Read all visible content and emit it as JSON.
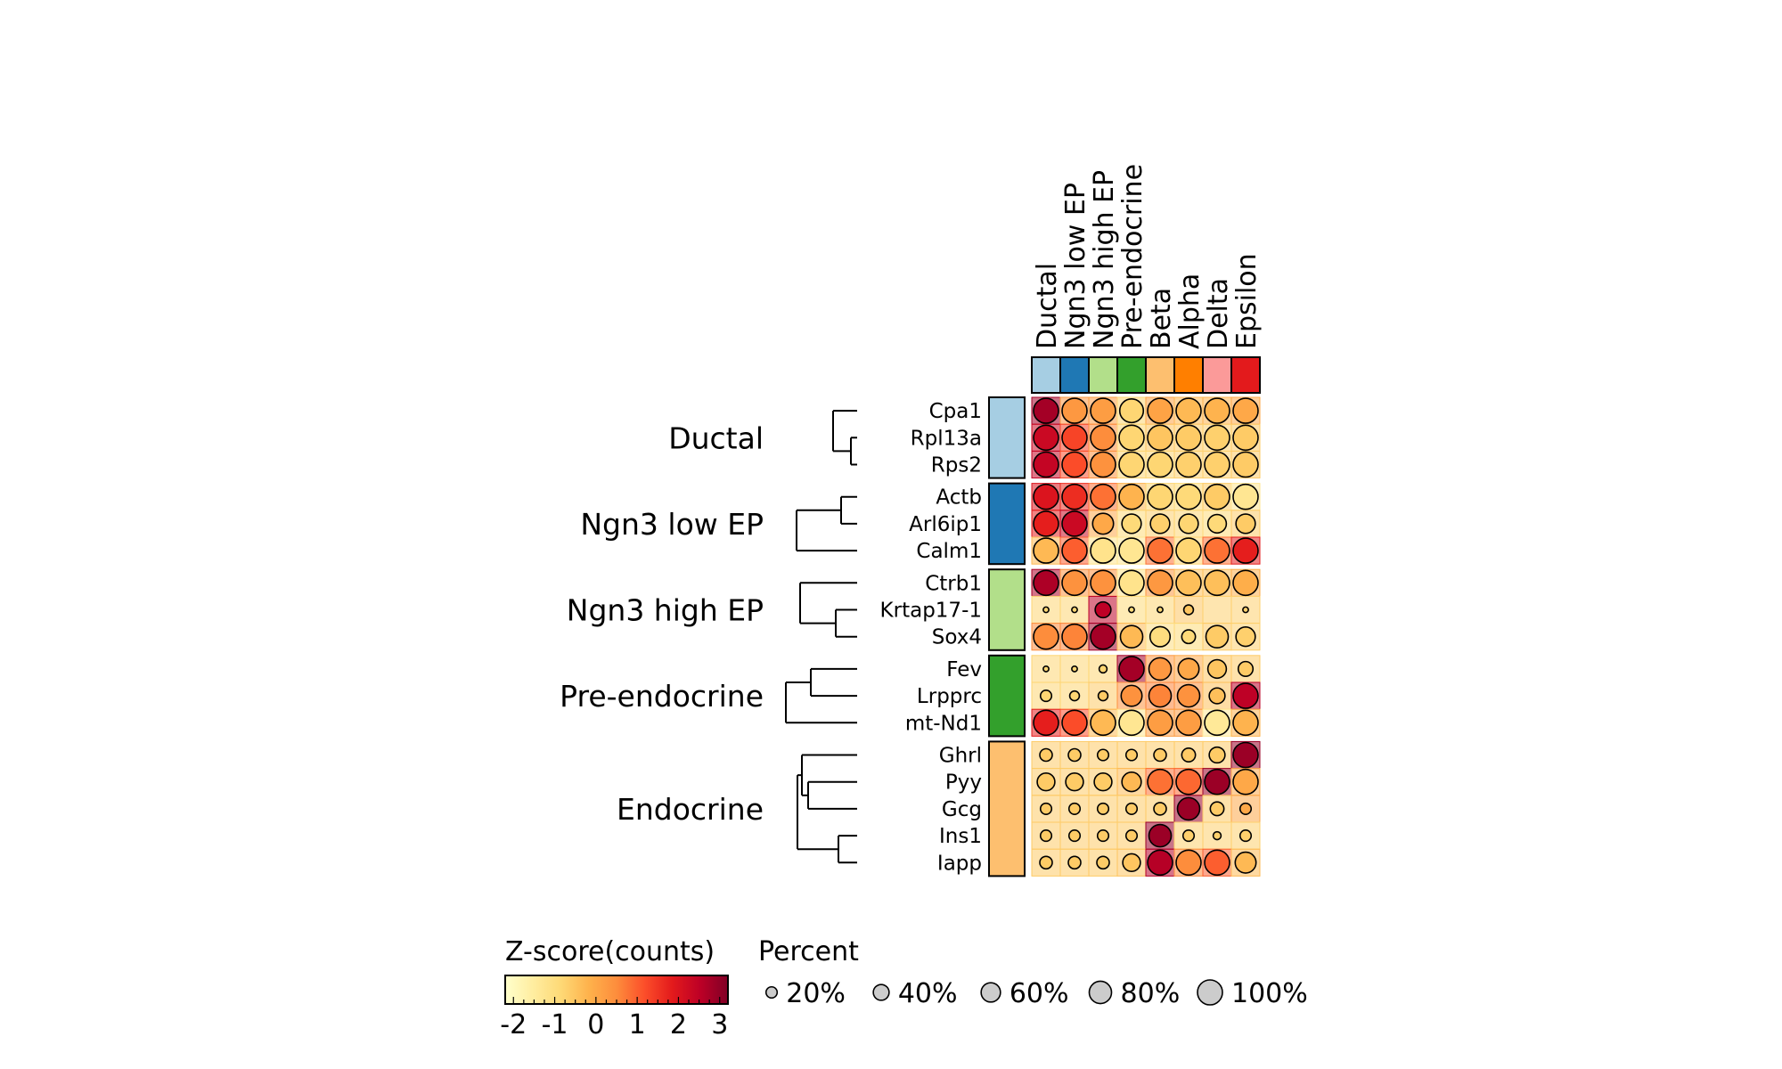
{
  "chart_data": {
    "type": "heatmap",
    "subtype": "dotplot",
    "columns": [
      "Ductal",
      "Ngn3 low EP",
      "Ngn3 high EP",
      "Pre-endocrine",
      "Beta",
      "Alpha",
      "Delta",
      "Epsilon"
    ],
    "column_colors": [
      "#a6cee3",
      "#1f78b4",
      "#b2df8a",
      "#33a02c",
      "#fdbf6f",
      "#ff7f00",
      "#fb9a99",
      "#e31a1c"
    ],
    "groups": [
      {
        "name": "Ductal",
        "color": "#a6cee3",
        "genes": [
          "Cpa1",
          "Rpl13a",
          "Rps2"
        ]
      },
      {
        "name": "Ngn3 low EP",
        "color": "#1f78b4",
        "genes": [
          "Actb",
          "Arl6ip1",
          "Calm1"
        ]
      },
      {
        "name": "Ngn3 high EP",
        "color": "#b2df8a",
        "genes": [
          "Ctrb1",
          "Krtap17-1",
          "Sox4"
        ]
      },
      {
        "name": "Pre-endocrine",
        "color": "#33a02c",
        "genes": [
          "Fev",
          "Lrpprc",
          "mt-Nd1"
        ]
      },
      {
        "name": "Endocrine",
        "color": "#fdbf6f",
        "genes": [
          "Ghrl",
          "Pyy",
          "Gcg",
          "Ins1",
          "Iapp"
        ]
      }
    ],
    "zscore": [
      [
        2.8,
        0.3,
        0.2,
        -0.8,
        0.1,
        -0.3,
        -0.2,
        0.0
      ],
      [
        2.3,
        1.3,
        0.5,
        -0.8,
        -0.5,
        -0.6,
        -0.7,
        -0.6
      ],
      [
        2.4,
        1.2,
        0.4,
        -0.8,
        -0.8,
        -0.7,
        -0.7,
        -0.6
      ],
      [
        2.0,
        1.6,
        0.8,
        -0.2,
        -0.8,
        -0.9,
        -0.6,
        -1.3
      ],
      [
        1.8,
        2.3,
        0.0,
        -0.9,
        -0.7,
        -0.8,
        -0.9,
        -0.6
      ],
      [
        -0.3,
        1.0,
        -1.2,
        -1.3,
        0.8,
        -0.8,
        0.8,
        1.8
      ],
      [
        2.7,
        0.4,
        0.4,
        -1.2,
        0.3,
        -0.4,
        -0.4,
        -0.1
      ],
      [
        -0.8,
        -0.8,
        2.5,
        -0.9,
        -0.8,
        -0.5,
        -0.7,
        -0.7
      ],
      [
        0.5,
        0.6,
        2.8,
        -0.3,
        -1.0,
        -0.9,
        -0.6,
        -0.7
      ],
      [
        -0.8,
        -0.8,
        -0.8,
        2.8,
        0.3,
        0.0,
        -0.5,
        -0.6
      ],
      [
        -0.8,
        -0.8,
        -0.6,
        0.4,
        0.6,
        0.4,
        -0.4,
        2.5
      ],
      [
        1.8,
        1.2,
        -0.3,
        -1.3,
        0.2,
        0.2,
        -1.4,
        -0.2
      ],
      [
        -0.6,
        -0.6,
        -0.6,
        -0.6,
        -0.6,
        -0.6,
        -0.6,
        2.9
      ],
      [
        -0.6,
        -0.6,
        -0.6,
        -0.3,
        0.8,
        0.9,
        2.9,
        0.0
      ],
      [
        -0.6,
        -0.6,
        -0.6,
        -0.6,
        -0.6,
        2.9,
        -0.6,
        0.0
      ],
      [
        -0.6,
        -0.6,
        -0.6,
        -0.6,
        2.9,
        -0.7,
        -0.7,
        -0.7
      ],
      [
        -0.6,
        -0.6,
        -0.6,
        -0.5,
        2.6,
        0.5,
        1.0,
        -0.3
      ]
    ],
    "percent": [
      [
        100,
        100,
        100,
        90,
        100,
        100,
        100,
        100
      ],
      [
        100,
        100,
        100,
        100,
        100,
        100,
        100,
        100
      ],
      [
        100,
        100,
        100,
        100,
        100,
        100,
        100,
        100
      ],
      [
        100,
        100,
        100,
        100,
        100,
        100,
        100,
        100
      ],
      [
        100,
        100,
        70,
        60,
        60,
        60,
        55,
        60
      ],
      [
        100,
        100,
        100,
        100,
        100,
        100,
        100,
        100
      ],
      [
        100,
        100,
        100,
        100,
        100,
        100,
        100,
        100
      ],
      [
        5,
        5,
        40,
        5,
        5,
        15,
        0,
        5
      ],
      [
        100,
        100,
        100,
        80,
        65,
        30,
        80,
        60
      ],
      [
        5,
        5,
        10,
        100,
        80,
        70,
        55,
        35
      ],
      [
        20,
        15,
        15,
        70,
        80,
        80,
        40,
        100
      ],
      [
        100,
        100,
        100,
        100,
        100,
        100,
        100,
        100
      ],
      [
        25,
        25,
        20,
        20,
        25,
        30,
        40,
        100
      ],
      [
        50,
        50,
        50,
        60,
        100,
        100,
        100,
        100
      ],
      [
        20,
        20,
        20,
        20,
        25,
        80,
        30,
        20
      ],
      [
        20,
        20,
        20,
        20,
        80,
        20,
        10,
        20
      ],
      [
        25,
        25,
        25,
        50,
        100,
        100,
        100,
        70
      ]
    ],
    "color_scale": {
      "title": "Z-score(counts)",
      "ticks": [
        -2,
        -1,
        0,
        1,
        2,
        3
      ],
      "domain": [
        -2.2,
        3.2
      ],
      "colors": [
        "#ffffcc",
        "#ffeda0",
        "#fed976",
        "#feb24c",
        "#fd8d3c",
        "#fc4e2a",
        "#e31a1c",
        "#bd0026",
        "#800026"
      ]
    },
    "size_legend": {
      "title": "Percent",
      "entries": [
        {
          "value": 20,
          "label": "20%"
        },
        {
          "value": 40,
          "label": "40%"
        },
        {
          "value": 60,
          "label": "60%"
        },
        {
          "value": 80,
          "label": "80%"
        },
        {
          "value": 100,
          "label": "100%"
        }
      ]
    }
  }
}
